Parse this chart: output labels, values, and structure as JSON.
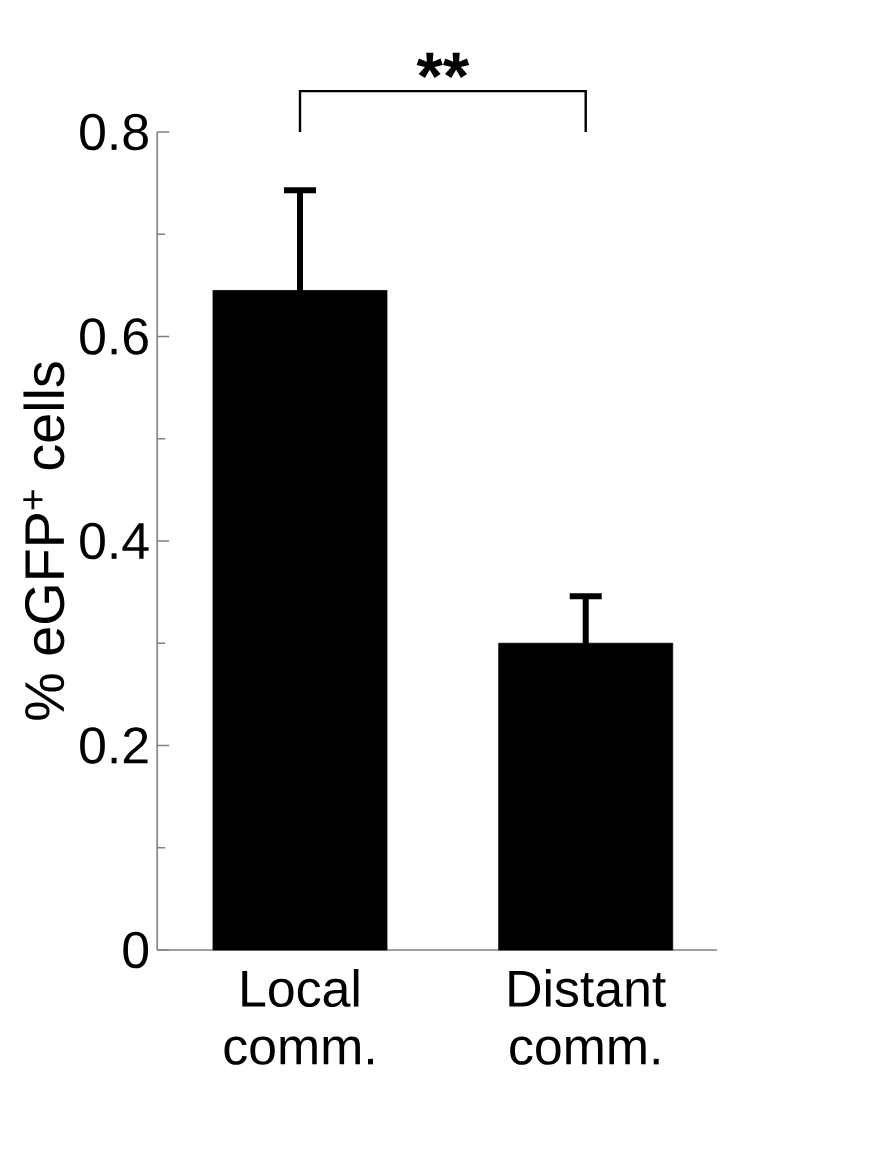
{
  "chart_data": {
    "type": "bar",
    "categories": [
      "Local comm.",
      "Distant comm."
    ],
    "values": [
      0.645,
      0.3
    ],
    "errors": [
      0.098,
      0.046
    ],
    "color": "#000000",
    "ylabel": "% eGFP$^{+}$ cells",
    "ylim": [
      0,
      0.8
    ],
    "yticks": [
      0,
      0.2,
      0.4,
      0.6,
      0.8
    ],
    "annotations": [
      "**"
    ],
    "grid": false
  }
}
